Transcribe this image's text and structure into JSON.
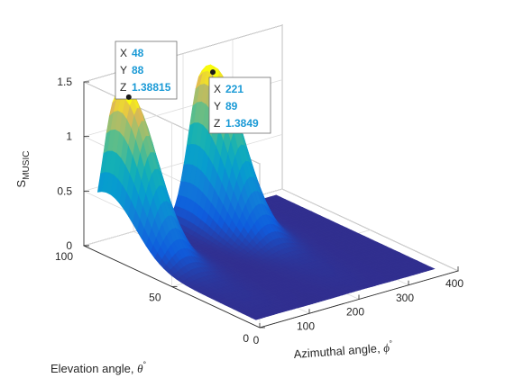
{
  "chart_data": {
    "type": "surface",
    "title": "",
    "zlabel_main": "S",
    "zlabel_sub": "MUSIC",
    "xlabel_main": "Azimuthal angle, ",
    "xlabel_sym": "ϕ",
    "xlabel_sup": "°",
    "ylabel_main": "Elevation angle, ",
    "ylabel_sym": "θ",
    "ylabel_sup": "°",
    "xlim": [
      0,
      400
    ],
    "ylim": [
      0,
      100
    ],
    "zlim": [
      0,
      1.5
    ],
    "x_ticks": [
      "0",
      "100",
      "200",
      "300",
      "400"
    ],
    "y_ticks": [
      "0",
      "50",
      "100"
    ],
    "z_ticks": [
      "0",
      "0.5",
      "1",
      "1.5"
    ],
    "grid": true,
    "colormap": "parula",
    "peaks": [
      {
        "x": 48,
        "y": 88,
        "z": 1.38815
      },
      {
        "x": 221,
        "y": 89,
        "z": 1.3849
      }
    ],
    "datatips": [
      {
        "x_label": "X",
        "x_value": "48",
        "y_label": "Y",
        "y_value": "88",
        "z_label": "Z",
        "z_value": "1.38815"
      },
      {
        "x_label": "X",
        "x_value": "221",
        "y_label": "Y",
        "y_value": "89",
        "z_label": "Z",
        "z_value": "1.3849"
      }
    ]
  }
}
